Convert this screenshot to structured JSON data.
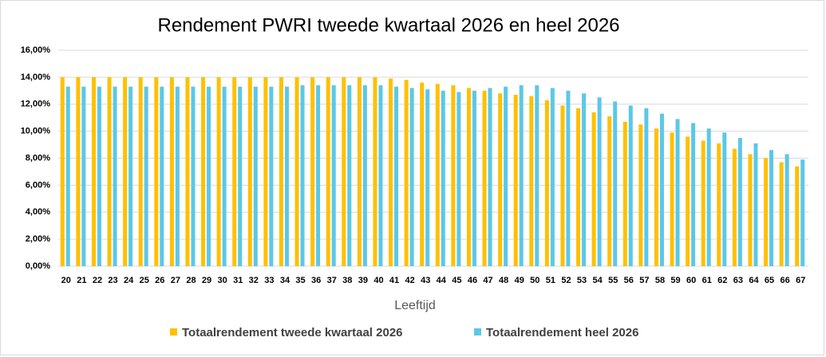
{
  "chart_data": {
    "type": "bar",
    "title": "Rendement PWRI tweede kwartaal 2026 en heel 2026",
    "x_label": "Leeftijd",
    "categories": [
      "20",
      "21",
      "22",
      "23",
      "24",
      "25",
      "26",
      "27",
      "28",
      "29",
      "30",
      "31",
      "32",
      "33",
      "34",
      "35",
      "36",
      "37",
      "38",
      "39",
      "40",
      "41",
      "42",
      "43",
      "44",
      "45",
      "46",
      "47",
      "48",
      "49",
      "50",
      "51",
      "52",
      "53",
      "54",
      "55",
      "56",
      "57",
      "58",
      "59",
      "60",
      "61",
      "62",
      "63",
      "64",
      "65",
      "66",
      "67"
    ],
    "series": [
      {
        "name": "Totaalrendement tweede kwartaal 2026",
        "color": "#FFC000",
        "values": [
          14.0,
          14.0,
          14.0,
          14.0,
          14.0,
          14.0,
          14.0,
          14.0,
          14.0,
          14.0,
          14.0,
          14.0,
          14.0,
          14.0,
          14.0,
          14.0,
          14.0,
          14.0,
          14.0,
          14.0,
          14.0,
          13.9,
          13.8,
          13.6,
          13.5,
          13.4,
          13.2,
          13.0,
          12.8,
          12.7,
          12.6,
          12.3,
          11.9,
          11.7,
          11.4,
          11.1,
          10.7,
          10.5,
          10.2,
          9.9,
          9.6,
          9.3,
          9.1,
          8.7,
          8.3,
          8.0,
          7.7,
          7.4
        ]
      },
      {
        "name": "Totaalrendement heel 2026",
        "color": "#5BC8E8",
        "values": [
          13.3,
          13.3,
          13.3,
          13.3,
          13.3,
          13.3,
          13.3,
          13.3,
          13.3,
          13.3,
          13.3,
          13.3,
          13.3,
          13.3,
          13.3,
          13.4,
          13.4,
          13.4,
          13.4,
          13.4,
          13.4,
          13.3,
          13.2,
          13.1,
          13.0,
          12.9,
          13.0,
          13.2,
          13.3,
          13.4,
          13.4,
          13.2,
          13.0,
          12.8,
          12.5,
          12.2,
          11.9,
          11.7,
          11.3,
          10.9,
          10.6,
          10.2,
          9.9,
          9.5,
          9.1,
          8.6,
          8.3,
          7.9
        ]
      }
    ],
    "ylim": [
      0,
      16
    ],
    "yticks": [
      {
        "value": 0,
        "label": "0,00%"
      },
      {
        "value": 2,
        "label": "2,00%"
      },
      {
        "value": 4,
        "label": "4,00%"
      },
      {
        "value": 6,
        "label": "6,00%"
      },
      {
        "value": 8,
        "label": "8,00%"
      },
      {
        "value": 10,
        "label": "10,00%"
      },
      {
        "value": 12,
        "label": "12,00%"
      },
      {
        "value": 14,
        "label": "14,00%"
      },
      {
        "value": 16,
        "label": "16,00%"
      }
    ],
    "grid": true
  }
}
